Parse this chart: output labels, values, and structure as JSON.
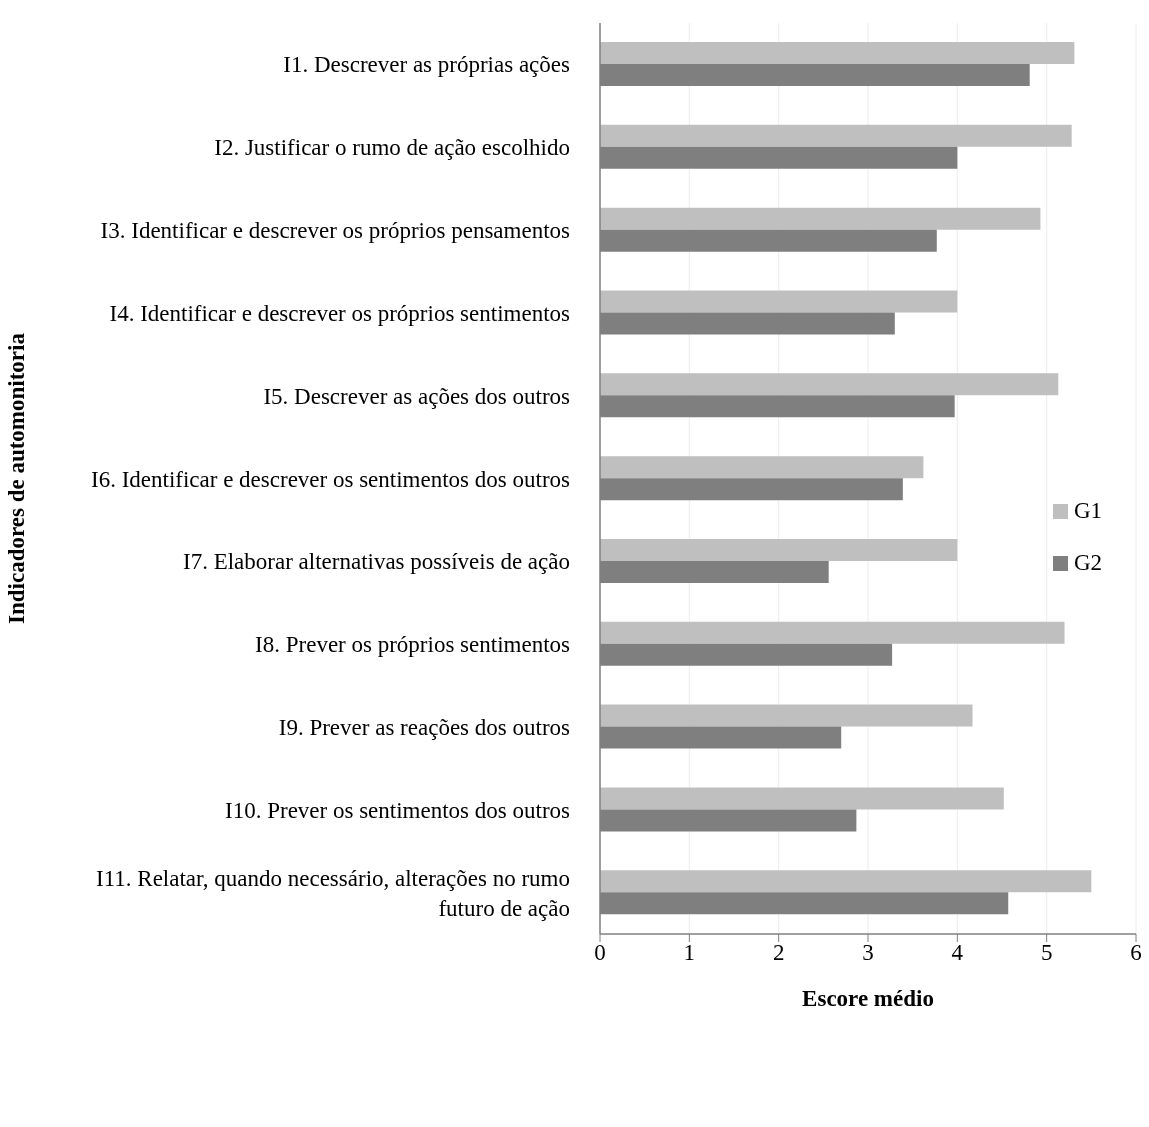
{
  "chart_data": {
    "type": "bar",
    "orientation": "horizontal",
    "xlabel": "Escore médio",
    "ylabel": "Indicadores de automonitoria",
    "categories": [
      "I1. Descrever as próprias ações",
      "I2. Justificar o rumo de ação escolhido",
      "I3. Identificar e descrever os próprios pensamentos",
      "I4. Identificar e descrever os próprios sentimentos",
      "I5. Descrever as ações dos outros",
      "I6. Identificar e descrever os sentimentos dos outros",
      "I7. Elaborar alternativas possíveis de ação",
      "I8. Prever os próprios sentimentos",
      "I9. Prever as reações dos outros",
      "I10. Prever os sentimentos dos outros",
      "I11. Relatar, quando necessário, alterações no rumo futuro de ação"
    ],
    "series": [
      {
        "name": "G1",
        "color": "#bfbfbf",
        "values": [
          5.31,
          5.28,
          4.93,
          4.0,
          5.13,
          3.62,
          4.0,
          5.2,
          4.17,
          4.52,
          5.5
        ]
      },
      {
        "name": "G2",
        "color": "#7f7f7f",
        "values": [
          4.81,
          4.0,
          3.77,
          3.3,
          3.97,
          3.39,
          2.56,
          3.27,
          2.7,
          2.87,
          4.57
        ]
      }
    ],
    "xlim": [
      0,
      6
    ],
    "xticks": [
      0,
      1,
      2,
      3,
      4,
      5,
      6
    ],
    "grid": "x",
    "legend": "right"
  }
}
